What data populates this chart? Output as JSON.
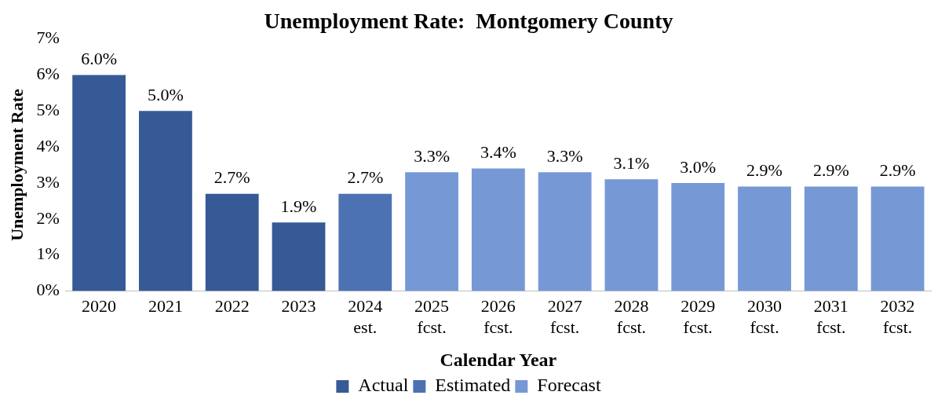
{
  "chart_data": {
    "type": "bar",
    "title": "Unemployment Rate:  Montgomery County",
    "xlabel": "Calendar Year",
    "ylabel": "Unemployment Rate",
    "categories": [
      "2020",
      "2021",
      "2022",
      "2023",
      "2024\nest.",
      "2025\nfcst.",
      "2026\nfcst.",
      "2027\nfcst.",
      "2028\nfcst.",
      "2029\nfcst.",
      "2030\nfcst.",
      "2031\nfcst.",
      "2032\nfcst."
    ],
    "stacked": true,
    "series": [
      {
        "name": "Actual",
        "color": "#365a96",
        "values": [
          6.0,
          5.0,
          2.7,
          1.9,
          null,
          null,
          null,
          null,
          null,
          null,
          null,
          null,
          null
        ],
        "value_labels": [
          "6.0%",
          "5.0%",
          "2.7%",
          "1.9%",
          null,
          null,
          null,
          null,
          null,
          null,
          null,
          null,
          null
        ]
      },
      {
        "name": "Estimated",
        "color": "#4d72b4",
        "values": [
          null,
          null,
          null,
          null,
          2.7,
          null,
          null,
          null,
          null,
          null,
          null,
          null,
          null
        ],
        "value_labels": [
          null,
          null,
          null,
          null,
          "2.7%",
          null,
          null,
          null,
          null,
          null,
          null,
          null,
          null
        ]
      },
      {
        "name": "Forecast",
        "color": "#7699d6",
        "values": [
          null,
          null,
          null,
          null,
          null,
          3.3,
          3.4,
          3.3,
          3.1,
          3.0,
          2.9,
          2.9,
          2.9
        ],
        "value_labels": [
          null,
          null,
          null,
          null,
          null,
          "3.3%",
          "3.4%",
          "3.3%",
          "3.1%",
          "3.0%",
          "2.9%",
          "2.9%",
          "2.9%"
        ]
      }
    ],
    "ylim": [
      0,
      7
    ],
    "yticks": [
      {
        "value": 0,
        "label": "0%"
      },
      {
        "value": 1,
        "label": "1%"
      },
      {
        "value": 2,
        "label": "2%"
      },
      {
        "value": 3,
        "label": "3%"
      },
      {
        "value": 4,
        "label": "4%"
      },
      {
        "value": 5,
        "label": "5%"
      },
      {
        "value": 6,
        "label": "6%"
      },
      {
        "value": 7,
        "label": "7%"
      }
    ],
    "grid": false,
    "legend": "bottom"
  }
}
